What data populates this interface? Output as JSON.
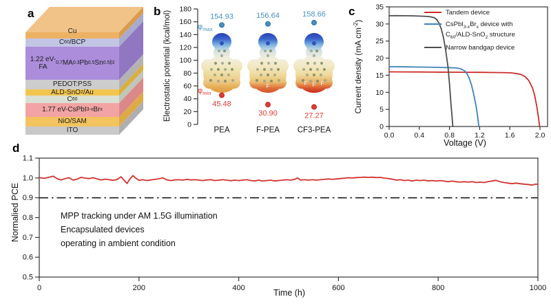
{
  "device_stack": {
    "label": "a",
    "top_face_color": "#f1c389",
    "layers": [
      {
        "name": "Cu",
        "label_html": "Cu",
        "front": "#edb164",
        "side": "#d99b4e",
        "h": 9
      },
      {
        "name": "C60/BCP",
        "label_html": "C<sub>60</sub>/BCP",
        "front": "#c3c5e4",
        "side": "#a9abce",
        "h": 12
      },
      {
        "name": "1.22eV-narrow-gap-perovskite",
        "label_html": "1.22 eV-<br>FA<sub>0.7</sub>MA<sub>0.3</sub>Pb<sub>0.5</sub>Sn<sub>0.5</sub>I<sub>3</sub>",
        "front": "#ab8ddb",
        "side": "#9176c2",
        "h": 48
      },
      {
        "name": "PEDOT:PSS",
        "label_html": "PEDOT:PSS",
        "front": "#cdcdcd",
        "side": "#b3b3b3",
        "h": 14
      },
      {
        "name": "ALD-SnO2/Au",
        "label_html": "ALD-SnO<sub>2</sub>/Au",
        "front": "#f2c54f",
        "side": "#dcae3c",
        "h": 9
      },
      {
        "name": "C60",
        "label_html": "C<sub>60</sub>",
        "front": "#dae0d3",
        "side": "#c0c6b9",
        "h": 11
      },
      {
        "name": "1.77eV-CsPbI3-xBrx",
        "label_html": "1.77 eV-CsPbI<sub>3-x</sub>Br<sub>x</sub>",
        "front": "#f2a3a3",
        "side": "#db8888",
        "h": 20
      },
      {
        "name": "NiO/SAM",
        "label_html": "NiO/SAM",
        "front": "#f3c360",
        "side": "#dcab47",
        "h": 14
      },
      {
        "name": "ITO",
        "label_html": "ITO",
        "front": "#c9c9c9",
        "side": "#afafaf",
        "h": 12
      }
    ]
  },
  "chart_data": [
    {
      "id": "b",
      "label": "b",
      "type": "scatter",
      "ylabel": "Electrostatic potential (kcal/mol)",
      "ylim": [
        0,
        180
      ],
      "yticks": [
        0,
        20,
        40,
        60,
        80,
        100,
        120,
        140,
        160,
        180
      ],
      "categories": [
        "PEA",
        "F-PEA",
        "CF3-PEA"
      ],
      "series": [
        {
          "name": "phi_max",
          "label_html": "φ<sub>max</sub>",
          "color": "#4690c4",
          "edge": "#2f6e9e",
          "values": [
            154.93,
            156.64,
            158.66
          ]
        },
        {
          "name": "phi_min",
          "label_html": "φ<sub>min</sub>",
          "color": "#e13b33",
          "edge": "#b2271f",
          "values": [
            45.48,
            30.9,
            27.27
          ]
        }
      ],
      "molecules": [
        {
          "name": "PEA",
          "f_labels": [],
          "bottom_colors": [
            "#edc783",
            "#e5a94e",
            "#df9e49"
          ]
        },
        {
          "name": "F-PEA",
          "f_labels": [
            "F"
          ],
          "bottom_colors": [
            "#eabf72",
            "#e0703a",
            "#d2552b"
          ]
        },
        {
          "name": "CF3-PEA",
          "f_labels": [
            "F",
            "F",
            "F"
          ],
          "bottom_colors": [
            "#e8b167",
            "#dc5a2e",
            "#c62a1c"
          ]
        }
      ]
    },
    {
      "id": "c",
      "label": "c",
      "type": "line",
      "xlabel": "Voltage (V)",
      "ylabel_html": "Current density (mA cm<sup>-2</sup>)",
      "xlim": [
        0,
        2.1
      ],
      "ylim": [
        0,
        35
      ],
      "xticks": [
        "0.0",
        "0.4",
        "0.8",
        "1.2",
        "1.6",
        "2.0"
      ],
      "yticks": [
        0,
        5,
        10,
        15,
        20,
        25,
        30,
        35
      ],
      "legend": [
        {
          "color": "#cd2b28",
          "html": "Tandem device"
        },
        {
          "color": "#3d81b7",
          "html": "CsPbI<sub>3-x</sub>Br<sub>x</sub> device with<br>C<sub>60</sub>/ALD-SnO<sub>2</sub> structure"
        },
        {
          "color": "#4d4d4d",
          "html": "Narrow bandgap device"
        }
      ],
      "series": [
        {
          "name": "Tandem device",
          "color": "#cd2b28",
          "points": [
            [
              0,
              16.0
            ],
            [
              0.2,
              15.97
            ],
            [
              0.4,
              15.95
            ],
            [
              0.6,
              15.92
            ],
            [
              0.8,
              15.9
            ],
            [
              1.0,
              15.88
            ],
            [
              1.2,
              15.85
            ],
            [
              1.4,
              15.8
            ],
            [
              1.5,
              15.78
            ],
            [
              1.6,
              15.7
            ],
            [
              1.65,
              15.6
            ],
            [
              1.7,
              15.45
            ],
            [
              1.75,
              15.2
            ],
            [
              1.8,
              14.6
            ],
            [
              1.85,
              13.5
            ],
            [
              1.9,
              11.3
            ],
            [
              1.93,
              9.0
            ],
            [
              1.96,
              5.5
            ],
            [
              1.98,
              2.5
            ],
            [
              1.995,
              0
            ]
          ]
        },
        {
          "name": "CsPbI3-xBrx device with C60/ALD-SnO2 structure",
          "color": "#3d81b7",
          "points": [
            [
              0,
              17.5
            ],
            [
              0.2,
              17.45
            ],
            [
              0.4,
              17.4
            ],
            [
              0.6,
              17.32
            ],
            [
              0.8,
              17.22
            ],
            [
              0.9,
              17.1
            ],
            [
              0.95,
              16.9
            ],
            [
              1.0,
              16.3
            ],
            [
              1.03,
              15.5
            ],
            [
              1.06,
              14.2
            ],
            [
              1.09,
              12.3
            ],
            [
              1.12,
              9.5
            ],
            [
              1.15,
              6.2
            ],
            [
              1.17,
              3.5
            ],
            [
              1.19,
              0
            ]
          ]
        },
        {
          "name": "Narrow bandgap device",
          "color": "#4d4d4d",
          "points": [
            [
              0,
              32.4
            ],
            [
              0.1,
              32.42
            ],
            [
              0.2,
              32.4
            ],
            [
              0.3,
              32.38
            ],
            [
              0.4,
              32.3
            ],
            [
              0.5,
              32.2
            ],
            [
              0.55,
              32.1
            ],
            [
              0.6,
              31.8
            ],
            [
              0.63,
              31.3
            ],
            [
              0.66,
              30.3
            ],
            [
              0.69,
              28.6
            ],
            [
              0.72,
              26.0
            ],
            [
              0.75,
              22.3
            ],
            [
              0.78,
              17.5
            ],
            [
              0.8,
              12.5
            ],
            [
              0.82,
              6.5
            ],
            [
              0.835,
              2.5
            ],
            [
              0.845,
              0
            ]
          ]
        }
      ]
    },
    {
      "id": "d",
      "label": "d",
      "type": "line",
      "xlabel": "Time (h)",
      "ylabel": "Normalied PCE",
      "xlim": [
        0,
        1000
      ],
      "ylim": [
        0.5,
        1.1
      ],
      "xticks": [
        0,
        200,
        400,
        600,
        800,
        1000
      ],
      "yticks": [
        "0.5",
        "0.6",
        "0.7",
        "0.8",
        "0.9",
        "1.0",
        "1.1"
      ],
      "threshold": {
        "value": 0.9,
        "style": "dash-dot",
        "color": "#1a1a1a"
      },
      "annotation_lines": [
        "MPP tracking under AM 1.5G illumination",
        "Encapsulated devices",
        "operating in ambient condition"
      ],
      "series": [
        {
          "name": "MPP normalized PCE",
          "color": "#d2312d",
          "points": [
            [
              0,
              1.002
            ],
            [
              10,
              0.998
            ],
            [
              20,
              1.004
            ],
            [
              28,
              1.009
            ],
            [
              36,
              0.996
            ],
            [
              44,
              0.99
            ],
            [
              52,
              0.997
            ],
            [
              60,
              1.001
            ],
            [
              68,
              0.989
            ],
            [
              76,
              0.994
            ],
            [
              84,
              1.003
            ],
            [
              92,
              0.999
            ],
            [
              100,
              0.997
            ],
            [
              108,
              1.001
            ],
            [
              116,
              0.995
            ],
            [
              124,
              0.99
            ],
            [
              132,
              0.994
            ],
            [
              140,
              0.991
            ],
            [
              148,
              0.988
            ],
            [
              156,
              0.992
            ],
            [
              164,
              1.006
            ],
            [
              170,
              0.988
            ],
            [
              176,
              0.972
            ],
            [
              182,
              0.996
            ],
            [
              188,
              1.012
            ],
            [
              194,
              0.998
            ],
            [
              200,
              0.988
            ],
            [
              208,
              0.991
            ],
            [
              216,
              0.987
            ],
            [
              224,
              0.99
            ],
            [
              232,
              0.993
            ],
            [
              240,
              0.996
            ],
            [
              248,
              1.0
            ],
            [
              256,
              0.99
            ],
            [
              264,
              0.987
            ],
            [
              272,
              0.99
            ],
            [
              280,
              0.991
            ],
            [
              288,
              0.989
            ],
            [
              296,
              0.993
            ],
            [
              304,
              0.99
            ],
            [
              312,
              0.991
            ],
            [
              320,
              0.989
            ],
            [
              328,
              0.987
            ],
            [
              336,
              0.99
            ],
            [
              344,
              0.991
            ],
            [
              352,
              0.987
            ],
            [
              360,
              0.989
            ],
            [
              368,
              0.991
            ],
            [
              376,
              0.989
            ],
            [
              384,
              0.986
            ],
            [
              392,
              0.989
            ],
            [
              400,
              0.987
            ],
            [
              408,
              0.989
            ],
            [
              416,
              0.991
            ],
            [
              424,
              0.987
            ],
            [
              432,
              0.985
            ],
            [
              440,
              0.989
            ],
            [
              448,
              0.984
            ],
            [
              456,
              0.987
            ],
            [
              464,
              0.989
            ],
            [
              472,
              0.985
            ],
            [
              480,
              0.987
            ],
            [
              488,
              0.989
            ],
            [
              496,
              0.991
            ],
            [
              504,
              0.989
            ],
            [
              512,
              0.993
            ],
            [
              518,
              1.0
            ],
            [
              524,
              0.989
            ],
            [
              532,
              0.991
            ],
            [
              540,
              0.989
            ],
            [
              548,
              0.991
            ],
            [
              556,
              0.989
            ],
            [
              564,
              0.991
            ],
            [
              572,
              0.993
            ],
            [
              580,
              0.995
            ],
            [
              588,
              0.993
            ],
            [
              596,
              0.995
            ],
            [
              604,
              0.997
            ],
            [
              612,
              0.999
            ],
            [
              620,
              1.001
            ],
            [
              628,
              1.0
            ],
            [
              636,
              1.002
            ],
            [
              644,
              1.003
            ],
            [
              652,
              1.004
            ],
            [
              660,
              1.003
            ],
            [
              668,
              1.004
            ],
            [
              676,
              1.002
            ],
            [
              684,
              1.003
            ],
            [
              692,
              0.999
            ],
            [
              700,
              0.997
            ],
            [
              708,
              0.994
            ],
            [
              716,
              0.989
            ],
            [
              724,
              0.991
            ],
            [
              732,
              0.987
            ],
            [
              740,
              0.989
            ],
            [
              748,
              0.984
            ],
            [
              756,
              0.989
            ],
            [
              764,
              0.987
            ],
            [
              772,
              0.989
            ],
            [
              780,
              0.985
            ],
            [
              788,
              0.987
            ],
            [
              796,
              0.984
            ],
            [
              804,
              0.987
            ],
            [
              812,
              0.984
            ],
            [
              820,
              0.981
            ],
            [
              828,
              0.984
            ],
            [
              836,
              0.981
            ],
            [
              844,
              0.979
            ],
            [
              852,
              0.981
            ],
            [
              860,
              0.979
            ],
            [
              868,
              0.981
            ],
            [
              876,
              0.977
            ],
            [
              884,
              0.979
            ],
            [
              892,
              0.977
            ],
            [
              900,
              0.981
            ],
            [
              908,
              0.985
            ],
            [
              916,
              0.988
            ],
            [
              924,
              0.981
            ],
            [
              932,
              0.977
            ],
            [
              940,
              0.974
            ],
            [
              948,
              0.971
            ],
            [
              956,
              0.974
            ],
            [
              964,
              0.971
            ],
            [
              972,
              0.969
            ],
            [
              980,
              0.967
            ],
            [
              988,
              0.964
            ],
            [
              996,
              0.969
            ],
            [
              1000,
              0.967
            ]
          ]
        }
      ]
    }
  ]
}
